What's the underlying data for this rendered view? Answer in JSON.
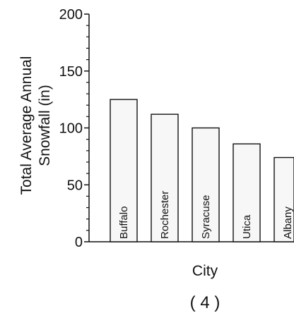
{
  "chart_data": {
    "type": "bar",
    "categories": [
      "Buffalo",
      "Rochester",
      "Syracuse",
      "Utica",
      "Albany"
    ],
    "values": [
      125,
      112,
      100,
      86,
      74
    ],
    "ylabel": [
      "Total Average Annual",
      "Snowfall (in)"
    ],
    "xlabel": "City",
    "ylim": [
      0,
      200
    ],
    "yticks": [
      0,
      50,
      100,
      150,
      200
    ],
    "grid": false,
    "legend": "none"
  },
  "caption": "( 4 )",
  "colors": {
    "bar_fill": "#f7f7f7",
    "bar_stroke": "#111111",
    "axis": "#111111"
  }
}
